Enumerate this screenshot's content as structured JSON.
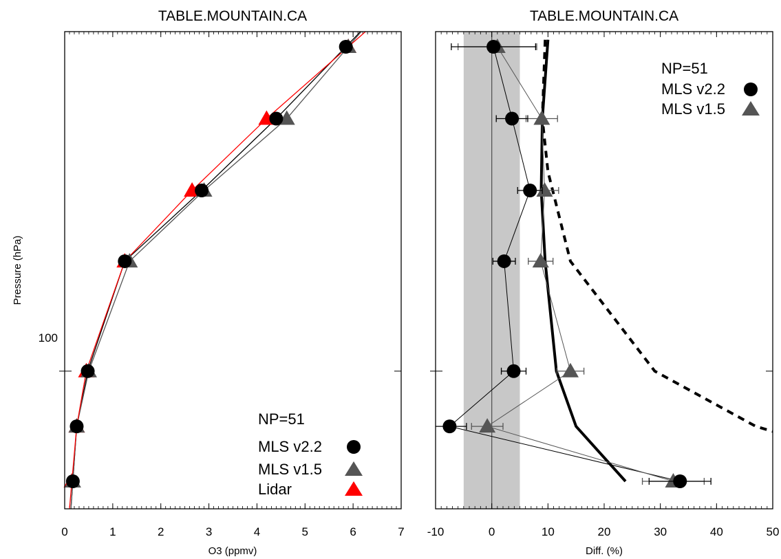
{
  "chart_data": [
    {
      "type": "line",
      "title": "TABLE.MOUNTAIN.CA",
      "xlabel": "O3 (ppmv)",
      "ylabel": "Pressure (hPa)",
      "xlim": [
        0,
        7
      ],
      "x_ticks": [
        0,
        1,
        2,
        3,
        4,
        5,
        6,
        7
      ],
      "y_scale": "log",
      "y_reversed": true,
      "ylim": [
        215,
        10
      ],
      "y_tick_labels": [
        "100"
      ],
      "y_tick_values": [
        100
      ],
      "legend": {
        "np_label": "NP=51",
        "position": "bottom-right"
      },
      "series": [
        {
          "name": "MLS v2.2",
          "marker": "circle",
          "color": "#000000",
          "points": [
            {
              "x": 5.85,
              "y": 10.5
            },
            {
              "x": 4.4,
              "y": 17.3
            },
            {
              "x": 2.85,
              "y": 28.5
            },
            {
              "x": 1.25,
              "y": 46.6
            },
            {
              "x": 0.48,
              "y": 100
            },
            {
              "x": 0.25,
              "y": 146.8
            },
            {
              "x": 0.17,
              "y": 215
            }
          ]
        },
        {
          "name": "MLS v1.5",
          "marker": "triangle",
          "color": "#555555",
          "points": [
            {
              "x": 5.9,
              "y": 10.5
            },
            {
              "x": 4.62,
              "y": 17.3
            },
            {
              "x": 2.9,
              "y": 28.5
            },
            {
              "x": 1.35,
              "y": 46.6
            },
            {
              "x": 0.5,
              "y": 100
            },
            {
              "x": 0.25,
              "y": 146.8
            },
            {
              "x": 0.17,
              "y": 215
            }
          ]
        },
        {
          "name": "Lidar",
          "marker": "triangle",
          "color": "#ff0000",
          "points": [
            {
              "x": 5.9,
              "y": 10.5
            },
            {
              "x": 4.2,
              "y": 17.3
            },
            {
              "x": 2.65,
              "y": 28.5
            },
            {
              "x": 1.25,
              "y": 46.6
            },
            {
              "x": 0.45,
              "y": 100
            },
            {
              "x": 0.25,
              "y": 146.8
            },
            {
              "x": 0.15,
              "y": 215
            }
          ]
        }
      ]
    },
    {
      "type": "line",
      "title": "TABLE.MOUNTAIN.CA",
      "xlabel": "Diff. (%)",
      "xlim": [
        -10,
        50
      ],
      "x_ticks": [
        -10,
        0,
        10,
        20,
        30,
        40,
        50
      ],
      "y_scale": "log",
      "y_reversed": true,
      "ylim": [
        215,
        10
      ],
      "shaded_band": {
        "x": [
          -5,
          5
        ],
        "color": "#c8c8c8"
      },
      "zero_line": 0,
      "legend": {
        "np_label": "NP=51",
        "position": "top-right"
      },
      "series": [
        {
          "name": "MLS v2.2",
          "marker": "circle",
          "color": "#000000",
          "points": [
            {
              "x": 0.3,
              "y": 10.5,
              "err": 7.5
            },
            {
              "x": 3.6,
              "y": 17.3,
              "err": 2.8
            },
            {
              "x": 6.8,
              "y": 28.5,
              "err": 2.2
            },
            {
              "x": 2.2,
              "y": 46.6,
              "err": 2.0
            },
            {
              "x": 3.9,
              "y": 100,
              "err": 2.2
            },
            {
              "x": -7.5,
              "y": 146.8,
              "err": 3.0
            },
            {
              "x": 33.5,
              "y": 215,
              "err": 5.5
            }
          ]
        },
        {
          "name": "MLS v1.5",
          "marker": "triangle",
          "color": "#555555",
          "points": [
            {
              "x": 1.0,
              "y": 10.5,
              "err": 7.0
            },
            {
              "x": 8.9,
              "y": 17.3,
              "err": 2.8
            },
            {
              "x": 9.4,
              "y": 28.5,
              "err": 2.5
            },
            {
              "x": 8.7,
              "y": 46.6,
              "err": 2.2
            },
            {
              "x": 14.0,
              "y": 100,
              "err": 2.4
            },
            {
              "x": -0.8,
              "y": 146.8,
              "err": 2.8
            },
            {
              "x": 32.3,
              "y": 215,
              "err": 5.5
            }
          ]
        }
      ],
      "reference_lines": [
        {
          "style": "solid-thick",
          "points": [
            {
              "x": 10.0,
              "y": 10.0
            },
            {
              "x": 9.0,
              "y": 17.3
            },
            {
              "x": 8.8,
              "y": 28.5
            },
            {
              "x": 9.5,
              "y": 46.6
            },
            {
              "x": 11.5,
              "y": 100
            },
            {
              "x": 15.0,
              "y": 146.8
            },
            {
              "x": 23.8,
              "y": 215
            }
          ]
        },
        {
          "style": "dashed-thick",
          "points": [
            {
              "x": 9.5,
              "y": 10.0
            },
            {
              "x": 9.0,
              "y": 17.3
            },
            {
              "x": 10.0,
              "y": 25.0
            },
            {
              "x": 14.0,
              "y": 46.6
            },
            {
              "x": 29.0,
              "y": 100
            },
            {
              "x": 47.0,
              "y": 146.8
            },
            {
              "x": 50.0,
              "y": 152
            }
          ]
        }
      ]
    }
  ]
}
